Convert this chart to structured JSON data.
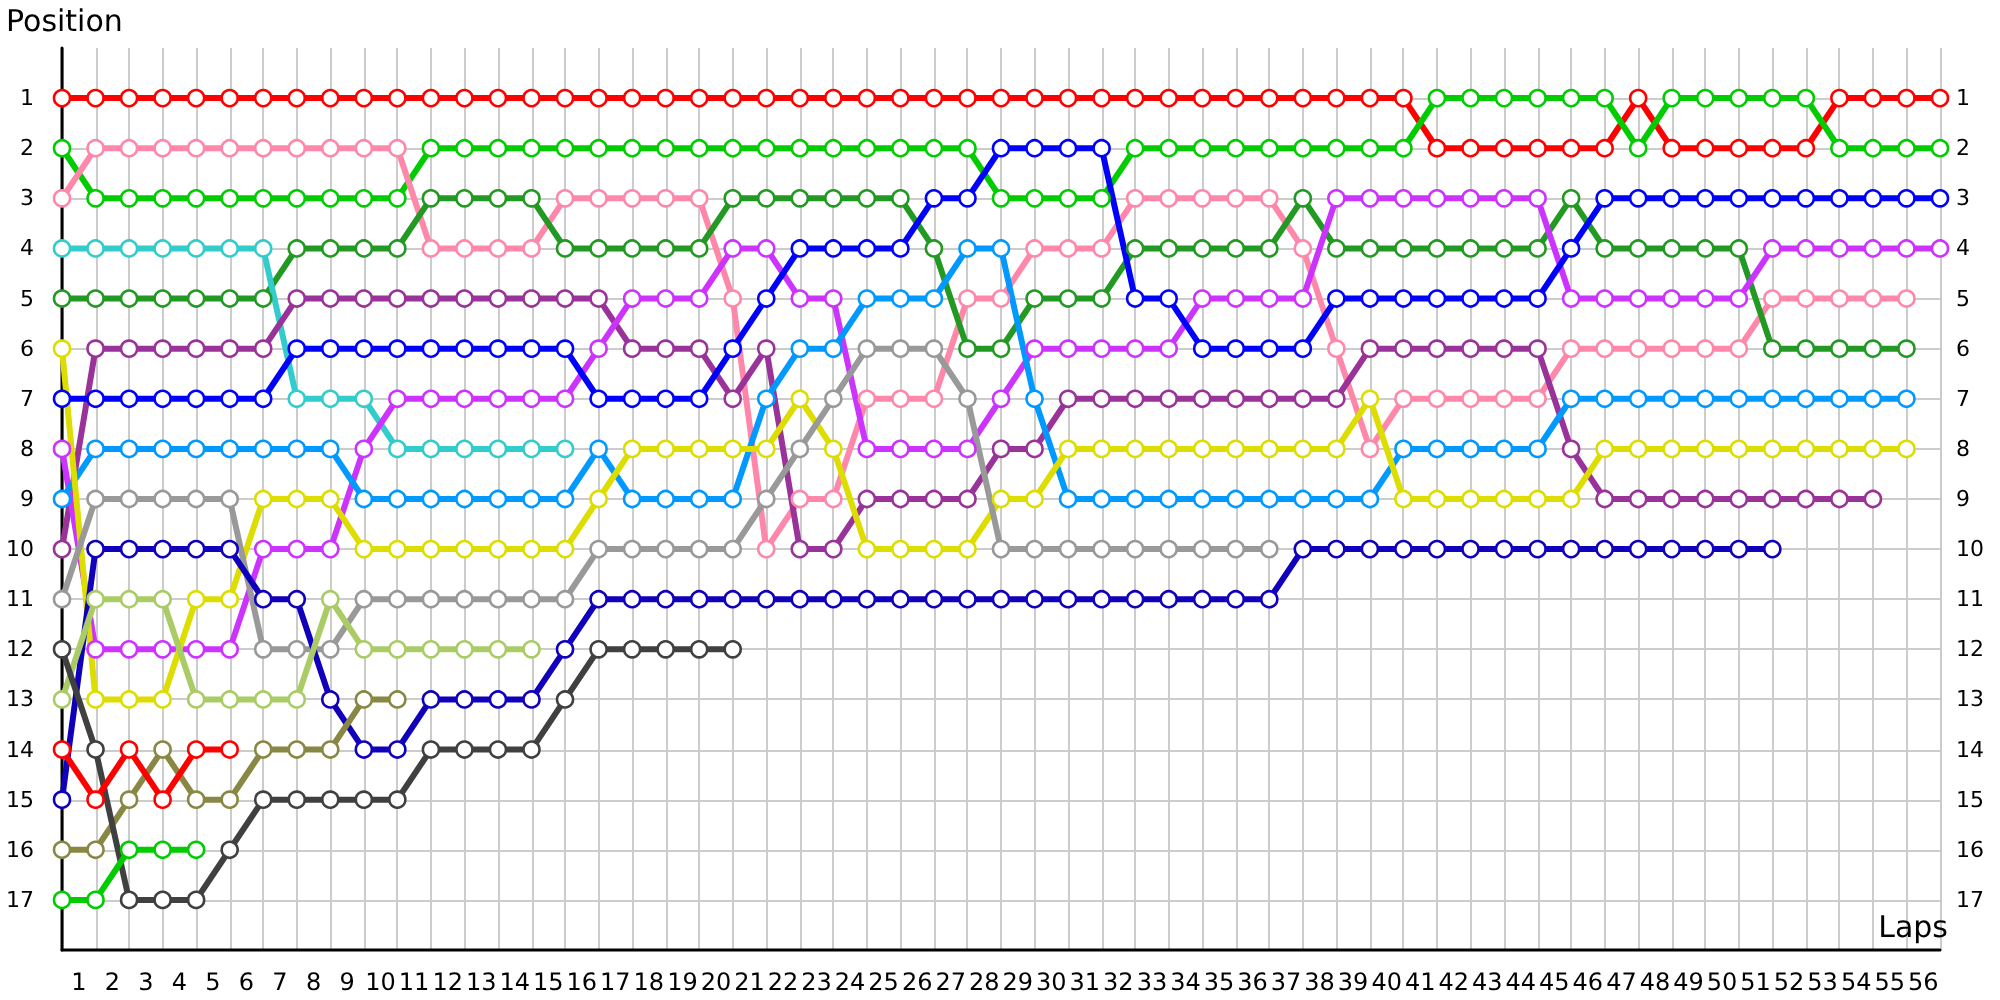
{
  "chart_data": {
    "type": "line",
    "xlabel": "Laps",
    "ylabel": "Position",
    "x": [
      0,
      1,
      2,
      3,
      4,
      5,
      6,
      7,
      8,
      9,
      10,
      11,
      12,
      13,
      14,
      15,
      16,
      17,
      18,
      19,
      20,
      21,
      22,
      23,
      24,
      25,
      26,
      27,
      28,
      29,
      30,
      31,
      32,
      33,
      34,
      35,
      36,
      37,
      38,
      39,
      40,
      41,
      42,
      43,
      44,
      45,
      46,
      47,
      48,
      49,
      50,
      51,
      52,
      53,
      54,
      55,
      56
    ],
    "xlim": [
      0,
      56
    ],
    "xticks": [
      {
        "value": 0,
        "label": null
      },
      {
        "value": 0.5,
        "label": "1"
      },
      {
        "value": 1,
        "label": null
      },
      {
        "value": 1.5,
        "label": "2"
      },
      {
        "value": 2,
        "label": null
      },
      {
        "value": 2.5,
        "label": "3"
      },
      {
        "value": 3,
        "label": null
      },
      {
        "value": 3.5,
        "label": "4"
      },
      {
        "value": 4,
        "label": null
      },
      {
        "value": 4.5,
        "label": "5"
      },
      {
        "value": 5,
        "label": null
      },
      {
        "value": 5.5,
        "label": "6"
      },
      {
        "value": 6,
        "label": null
      },
      {
        "value": 6.5,
        "label": "7"
      },
      {
        "value": 7,
        "label": null
      },
      {
        "value": 7.5,
        "label": "8"
      },
      {
        "value": 8,
        "label": null
      },
      {
        "value": 8.5,
        "label": "9"
      },
      {
        "value": 9,
        "label": null
      },
      {
        "value": 9.5,
        "label": "10"
      },
      {
        "value": 10,
        "label": null
      },
      {
        "value": 10.5,
        "label": "11"
      },
      {
        "value": 11,
        "label": null
      },
      {
        "value": 11.5,
        "label": "12"
      },
      {
        "value": 12,
        "label": null
      },
      {
        "value": 12.5,
        "label": "13"
      },
      {
        "value": 13,
        "label": null
      },
      {
        "value": 13.5,
        "label": "14"
      },
      {
        "value": 14,
        "label": null
      },
      {
        "value": 14.5,
        "label": "15"
      },
      {
        "value": 15,
        "label": null
      },
      {
        "value": 15.5,
        "label": "16"
      },
      {
        "value": 16,
        "label": null
      },
      {
        "value": 16.5,
        "label": "17"
      },
      {
        "value": 17,
        "label": null
      },
      {
        "value": 17.5,
        "label": "18"
      },
      {
        "value": 18,
        "label": null
      },
      {
        "value": 18.5,
        "label": "19"
      },
      {
        "value": 19,
        "label": null
      },
      {
        "value": 19.5,
        "label": "20"
      },
      {
        "value": 20,
        "label": null
      },
      {
        "value": 20.5,
        "label": "21"
      },
      {
        "value": 21,
        "label": null
      },
      {
        "value": 21.5,
        "label": "22"
      },
      {
        "value": 22,
        "label": null
      },
      {
        "value": 22.5,
        "label": "23"
      },
      {
        "value": 23,
        "label": null
      },
      {
        "value": 23.5,
        "label": "24"
      },
      {
        "value": 24,
        "label": null
      },
      {
        "value": 24.5,
        "label": "25"
      },
      {
        "value": 25,
        "label": null
      },
      {
        "value": 25.5,
        "label": "26"
      },
      {
        "value": 26,
        "label": null
      },
      {
        "value": 26.5,
        "label": "27"
      },
      {
        "value": 27,
        "label": null
      },
      {
        "value": 27.5,
        "label": "28"
      },
      {
        "value": 28,
        "label": null
      },
      {
        "value": 28.5,
        "label": "29"
      },
      {
        "value": 29,
        "label": null
      },
      {
        "value": 29.5,
        "label": "30"
      },
      {
        "value": 30,
        "label": null
      },
      {
        "value": 30.5,
        "label": "31"
      },
      {
        "value": 31,
        "label": null
      },
      {
        "value": 31.5,
        "label": "32"
      },
      {
        "value": 32,
        "label": null
      },
      {
        "value": 32.5,
        "label": "33"
      },
      {
        "value": 33,
        "label": null
      },
      {
        "value": 33.5,
        "label": "34"
      },
      {
        "value": 34,
        "label": null
      },
      {
        "value": 34.5,
        "label": "35"
      },
      {
        "value": 35,
        "label": null
      },
      {
        "value": 35.5,
        "label": "36"
      },
      {
        "value": 36,
        "label": null
      },
      {
        "value": 36.5,
        "label": "37"
      },
      {
        "value": 37,
        "label": null
      },
      {
        "value": 37.5,
        "label": "38"
      },
      {
        "value": 38,
        "label": null
      },
      {
        "value": 38.5,
        "label": "39"
      },
      {
        "value": 39,
        "label": null
      },
      {
        "value": 39.5,
        "label": "40"
      },
      {
        "value": 40,
        "label": null
      },
      {
        "value": 40.5,
        "label": "41"
      },
      {
        "value": 41,
        "label": null
      },
      {
        "value": 41.5,
        "label": "42"
      },
      {
        "value": 42,
        "label": null
      },
      {
        "value": 42.5,
        "label": "43"
      },
      {
        "value": 43,
        "label": null
      },
      {
        "value": 43.5,
        "label": "44"
      },
      {
        "value": 44,
        "label": null
      },
      {
        "value": 44.5,
        "label": "45"
      },
      {
        "value": 45,
        "label": null
      },
      {
        "value": 45.5,
        "label": "46"
      },
      {
        "value": 46,
        "label": null
      },
      {
        "value": 46.5,
        "label": "47"
      },
      {
        "value": 47,
        "label": null
      },
      {
        "value": 47.5,
        "label": "48"
      },
      {
        "value": 48,
        "label": null
      },
      {
        "value": 48.5,
        "label": "49"
      },
      {
        "value": 49,
        "label": null
      },
      {
        "value": 49.5,
        "label": "50"
      },
      {
        "value": 50,
        "label": null
      },
      {
        "value": 50.5,
        "label": "51"
      },
      {
        "value": 51,
        "label": null
      },
      {
        "value": 51.5,
        "label": "52"
      },
      {
        "value": 52,
        "label": null
      },
      {
        "value": 52.5,
        "label": "53"
      },
      {
        "value": 53,
        "label": null
      },
      {
        "value": 53.5,
        "label": "54"
      },
      {
        "value": 54,
        "label": null
      },
      {
        "value": 54.5,
        "label": "55"
      },
      {
        "value": 55,
        "label": null
      },
      {
        "value": 55.5,
        "label": "56"
      },
      {
        "value": 56,
        "label": null
      }
    ],
    "ylim": [
      18,
      0
    ],
    "yticks": [
      1,
      2,
      3,
      4,
      5,
      6,
      7,
      8,
      9,
      10,
      11,
      12,
      13,
      14,
      15,
      16,
      17
    ],
    "y2lim": [
      18,
      0
    ],
    "y2ticks": [
      1,
      2,
      3,
      4,
      5,
      6,
      7,
      8,
      9,
      10,
      11,
      12,
      13,
      14,
      15,
      16,
      17
    ],
    "grid": true,
    "marker": "circle",
    "line_style": "solid",
    "series": [
      {
        "color": "#ff0000",
        "values": [
          1,
          1,
          1,
          1,
          1,
          1,
          1,
          1,
          1,
          1,
          1,
          1,
          1,
          1,
          1,
          1,
          1,
          1,
          1,
          1,
          1,
          1,
          1,
          1,
          1,
          1,
          1,
          1,
          1,
          1,
          1,
          1,
          1,
          1,
          1,
          1,
          1,
          1,
          1,
          1,
          1,
          2,
          2,
          2,
          2,
          2,
          2,
          1,
          2,
          2,
          2,
          2,
          2,
          1,
          1,
          1,
          1
        ]
      },
      {
        "color": "#00cc00",
        "values": [
          2,
          3,
          3,
          3,
          3,
          3,
          3,
          3,
          3,
          3,
          3,
          2,
          2,
          2,
          2,
          2,
          2,
          2,
          2,
          2,
          2,
          2,
          2,
          2,
          2,
          2,
          2,
          2,
          3,
          3,
          3,
          3,
          2,
          2,
          2,
          2,
          2,
          2,
          2,
          2,
          2,
          1,
          1,
          1,
          1,
          1,
          1,
          2,
          1,
          1,
          1,
          1,
          1,
          2,
          2,
          2,
          2
        ]
      },
      {
        "color": "#ff88aa",
        "values": [
          3,
          2,
          2,
          2,
          2,
          2,
          2,
          2,
          2,
          2,
          2,
          4,
          4,
          4,
          4,
          3,
          3,
          3,
          3,
          3,
          5,
          10,
          9,
          9,
          7,
          7,
          7,
          5,
          5,
          4,
          4,
          4,
          3,
          3,
          3,
          3,
          3,
          4,
          6,
          8,
          7,
          7,
          7,
          7,
          7,
          6,
          6,
          6,
          6,
          6,
          6,
          5,
          5,
          5,
          5,
          5,
          null
        ]
      },
      {
        "color": "#229922",
        "values": [
          5,
          5,
          5,
          5,
          5,
          5,
          5,
          4,
          4,
          4,
          4,
          3,
          3,
          3,
          3,
          4,
          4,
          4,
          4,
          4,
          3,
          3,
          3,
          3,
          3,
          3,
          4,
          6,
          6,
          5,
          5,
          5,
          4,
          4,
          4,
          4,
          4,
          3,
          4,
          4,
          4,
          4,
          4,
          4,
          4,
          3,
          4,
          4,
          4,
          4,
          4,
          6,
          6,
          6,
          6,
          6,
          null
        ]
      },
      {
        "color": "#33cccc",
        "values": [
          4,
          4,
          4,
          4,
          4,
          4,
          4,
          7,
          7,
          7,
          8,
          8,
          8,
          8,
          8,
          8,
          null,
          null,
          null,
          null,
          null,
          null,
          null,
          null,
          null,
          null,
          null,
          null,
          null,
          null,
          null,
          null,
          null,
          null,
          null,
          null,
          null,
          null,
          null,
          null,
          null,
          null,
          null,
          null,
          null,
          null,
          null,
          null,
          null,
          null,
          null,
          null,
          null,
          null,
          null,
          null,
          null
        ]
      },
      {
        "color": "#993399",
        "values": [
          10,
          6,
          6,
          6,
          6,
          6,
          6,
          5,
          5,
          5,
          5,
          5,
          5,
          5,
          5,
          5,
          5,
          6,
          6,
          6,
          7,
          6,
          10,
          10,
          9,
          9,
          9,
          9,
          8,
          8,
          7,
          7,
          7,
          7,
          7,
          7,
          7,
          7,
          7,
          6,
          6,
          6,
          6,
          6,
          6,
          8,
          9,
          9,
          9,
          9,
          9,
          9,
          9,
          9,
          9,
          null,
          null
        ]
      },
      {
        "color": "#cc33ff",
        "values": [
          8,
          12,
          12,
          12,
          12,
          12,
          10,
          10,
          10,
          8,
          7,
          7,
          7,
          7,
          7,
          7,
          6,
          5,
          5,
          5,
          4,
          4,
          5,
          5,
          8,
          8,
          8,
          8,
          7,
          6,
          6,
          6,
          6,
          6,
          5,
          5,
          5,
          5,
          3,
          3,
          3,
          3,
          3,
          3,
          3,
          5,
          5,
          5,
          5,
          5,
          5,
          4,
          4,
          4,
          4,
          4,
          4
        ]
      },
      {
        "color": "#0000ff",
        "values": [
          7,
          7,
          7,
          7,
          7,
          7,
          7,
          6,
          6,
          6,
          6,
          6,
          6,
          6,
          6,
          6,
          7,
          7,
          7,
          7,
          6,
          5,
          4,
          4,
          4,
          4,
          3,
          3,
          2,
          2,
          2,
          2,
          5,
          5,
          6,
          6,
          6,
          6,
          5,
          5,
          5,
          5,
          5,
          5,
          5,
          4,
          3,
          3,
          3,
          3,
          3,
          3,
          3,
          3,
          3,
          3,
          3
        ]
      },
      {
        "color": "#0099ff",
        "values": [
          9,
          8,
          8,
          8,
          8,
          8,
          8,
          8,
          8,
          9,
          9,
          9,
          9,
          9,
          9,
          9,
          8,
          9,
          9,
          9,
          9,
          7,
          6,
          6,
          5,
          5,
          5,
          4,
          4,
          7,
          9,
          9,
          9,
          9,
          9,
          9,
          9,
          9,
          9,
          9,
          8,
          8,
          8,
          8,
          8,
          7,
          7,
          7,
          7,
          7,
          7,
          7,
          7,
          7,
          7,
          7,
          null
        ]
      },
      {
        "color": "#dddd00",
        "values": [
          6,
          13,
          13,
          13,
          11,
          11,
          9,
          9,
          9,
          10,
          10,
          10,
          10,
          10,
          10,
          10,
          9,
          8,
          8,
          8,
          8,
          8,
          7,
          8,
          10,
          10,
          10,
          10,
          9,
          9,
          8,
          8,
          8,
          8,
          8,
          8,
          8,
          8,
          8,
          7,
          9,
          9,
          9,
          9,
          9,
          9,
          8,
          8,
          8,
          8,
          8,
          8,
          8,
          8,
          8,
          8,
          null
        ]
      },
      {
        "color": "#999999",
        "values": [
          11,
          9,
          9,
          9,
          9,
          9,
          12,
          12,
          12,
          11,
          11,
          11,
          11,
          11,
          11,
          11,
          10,
          10,
          10,
          10,
          10,
          9,
          8,
          7,
          6,
          6,
          6,
          7,
          10,
          10,
          10,
          10,
          10,
          10,
          10,
          10,
          10,
          null,
          null,
          null,
          null,
          null,
          null,
          null,
          null,
          null,
          null,
          null,
          null,
          null,
          null,
          null,
          null,
          null,
          null,
          null,
          null
        ]
      },
      {
        "color": "#1100bb",
        "values": [
          15,
          10,
          10,
          10,
          10,
          10,
          11,
          11,
          13,
          14,
          14,
          13,
          13,
          13,
          13,
          12,
          11,
          11,
          11,
          11,
          11,
          11,
          11,
          11,
          11,
          11,
          11,
          11,
          11,
          11,
          11,
          11,
          11,
          11,
          11,
          11,
          11,
          10,
          10,
          10,
          10,
          10,
          10,
          10,
          10,
          10,
          10,
          10,
          10,
          10,
          10,
          10,
          null,
          null,
          null,
          null,
          null
        ]
      },
      {
        "color": "#aacc66",
        "values": [
          13,
          11,
          11,
          11,
          13,
          13,
          13,
          13,
          11,
          12,
          12,
          12,
          12,
          12,
          12,
          null,
          null,
          null,
          null,
          null,
          null,
          null,
          null,
          null,
          null,
          null,
          null,
          null,
          null,
          null,
          null,
          null,
          null,
          null,
          null,
          null,
          null,
          null,
          null,
          null,
          null,
          null,
          null,
          null,
          null,
          null,
          null,
          null,
          null,
          null,
          null,
          null,
          null,
          null,
          null,
          null,
          null
        ]
      },
      {
        "color": "#888844",
        "values": [
          16,
          16,
          15,
          14,
          15,
          15,
          14,
          14,
          14,
          13,
          13,
          null,
          null,
          null,
          null,
          null,
          null,
          null,
          null,
          null,
          null,
          null,
          null,
          null,
          null,
          null,
          null,
          null,
          null,
          null,
          null,
          null,
          null,
          null,
          null,
          null,
          null,
          null,
          null,
          null,
          null,
          null,
          null,
          null,
          null,
          null,
          null,
          null,
          null,
          null,
          null,
          null,
          null,
          null,
          null,
          null,
          null
        ]
      },
      {
        "color": "#404040",
        "values": [
          12,
          14,
          17,
          17,
          17,
          16,
          15,
          15,
          15,
          15,
          15,
          14,
          14,
          14,
          14,
          13,
          12,
          12,
          12,
          12,
          12,
          null,
          null,
          null,
          null,
          null,
          null,
          null,
          null,
          null,
          null,
          null,
          null,
          null,
          null,
          null,
          null,
          null,
          null,
          null,
          null,
          null,
          null,
          null,
          null,
          null,
          null,
          null,
          null,
          null,
          null,
          null,
          null,
          null,
          null,
          null,
          null
        ]
      },
      {
        "color": "#ff0000",
        "values": [
          14,
          15,
          14,
          15,
          14,
          14,
          null,
          null,
          null,
          null,
          null,
          null,
          null,
          null,
          null,
          null,
          null,
          null,
          null,
          null,
          null,
          null,
          null,
          null,
          null,
          null,
          null,
          null,
          null,
          null,
          null,
          null,
          null,
          null,
          null,
          null,
          null,
          null,
          null,
          null,
          null,
          null,
          null,
          null,
          null,
          null,
          null,
          null,
          null,
          null,
          null,
          null,
          null,
          null,
          null,
          null,
          null
        ]
      },
      {
        "color": "#00cc00",
        "values": [
          17,
          17,
          16,
          16,
          16,
          null,
          null,
          null,
          null,
          null,
          null,
          null,
          null,
          null,
          null,
          null,
          null,
          null,
          null,
          null,
          null,
          null,
          null,
          null,
          null,
          null,
          null,
          null,
          null,
          null,
          null,
          null,
          null,
          null,
          null,
          null,
          null,
          null,
          null,
          null,
          null,
          null,
          null,
          null,
          null,
          null,
          null,
          null,
          null,
          null,
          null,
          null,
          null,
          null,
          null,
          null,
          null
        ]
      }
    ]
  }
}
